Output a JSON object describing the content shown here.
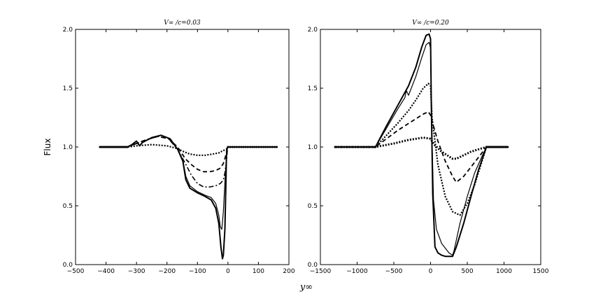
{
  "figure": {
    "ylabel": "Flux",
    "xlabel": "y∞"
  },
  "chart_data": [
    {
      "type": "line",
      "title": "V∞ /c=0.03",
      "xlabel": "y∞",
      "ylabel": "Flux",
      "xlim": [
        -500,
        200
      ],
      "ylim": [
        0.0,
        2.0
      ],
      "xticks": [
        -500,
        -400,
        -300,
        -200,
        -100,
        0,
        100,
        200
      ],
      "xtick_labels": [
        "−500",
        "−400",
        "−300",
        "−200",
        "−100",
        "0",
        "100",
        "200"
      ],
      "yticks": [
        0.0,
        0.5,
        1.0,
        1.5,
        2.0
      ],
      "ytick_labels": [
        "0.0",
        "0.5",
        "1.0",
        "1.5",
        "2.0"
      ],
      "grid": false,
      "series": [
        {
          "style": "solid-thick",
          "x": [
            -420,
            -330,
            -315,
            -300,
            -290,
            -280,
            -250,
            -220,
            -190,
            -165,
            -148,
            -138,
            -125,
            -100,
            -75,
            -55,
            -40,
            -30,
            -23,
            -18,
            -15,
            -10,
            -7,
            -5,
            -3,
            0,
            160
          ],
          "y": [
            1.0,
            1.0,
            1.02,
            1.05,
            1.01,
            1.04,
            1.08,
            1.1,
            1.07,
            0.98,
            0.88,
            0.72,
            0.65,
            0.61,
            0.58,
            0.55,
            0.48,
            0.35,
            0.15,
            0.05,
            0.08,
            0.3,
            0.65,
            0.92,
            0.99,
            1.0,
            1.0
          ]
        },
        {
          "style": "solid-thin",
          "x": [
            -420,
            -330,
            -315,
            -300,
            -290,
            -280,
            -250,
            -220,
            -190,
            -165,
            -148,
            -138,
            -125,
            -100,
            -75,
            -55,
            -40,
            -30,
            -25,
            -20,
            -15,
            -10,
            -5,
            -3,
            0,
            160
          ],
          "y": [
            1.0,
            1.0,
            1.02,
            1.05,
            1.01,
            1.04,
            1.08,
            1.1,
            1.07,
            0.98,
            0.89,
            0.75,
            0.67,
            0.62,
            0.59,
            0.57,
            0.52,
            0.42,
            0.32,
            0.3,
            0.45,
            0.7,
            0.92,
            0.98,
            1.0,
            1.0
          ]
        },
        {
          "style": "dashed",
          "x": [
            -420,
            -330,
            -300,
            -270,
            -230,
            -195,
            -165,
            -140,
            -120,
            -100,
            -80,
            -60,
            -40,
            -25,
            -15,
            -8,
            -3,
            0,
            160
          ],
          "y": [
            1.0,
            1.0,
            1.03,
            1.06,
            1.09,
            1.07,
            1.0,
            0.9,
            0.85,
            0.81,
            0.79,
            0.79,
            0.8,
            0.82,
            0.86,
            0.92,
            0.98,
            1.0,
            1.0
          ]
        },
        {
          "style": "dash-dot",
          "x": [
            -420,
            -330,
            -300,
            -270,
            -230,
            -195,
            -165,
            -140,
            -120,
            -100,
            -80,
            -60,
            -40,
            -25,
            -15,
            -10,
            -5,
            -2,
            0,
            160
          ],
          "y": [
            1.0,
            1.0,
            1.03,
            1.06,
            1.09,
            1.07,
            0.98,
            0.86,
            0.76,
            0.69,
            0.66,
            0.66,
            0.67,
            0.69,
            0.72,
            0.78,
            0.88,
            0.97,
            1.0,
            1.0
          ]
        },
        {
          "style": "dotted",
          "x": [
            -420,
            -330,
            -300,
            -250,
            -200,
            -170,
            -145,
            -125,
            -100,
            -75,
            -50,
            -30,
            -15,
            -5,
            0,
            160
          ],
          "y": [
            1.0,
            1.0,
            1.01,
            1.02,
            1.01,
            0.99,
            0.96,
            0.94,
            0.93,
            0.93,
            0.94,
            0.95,
            0.97,
            0.98,
            1.0,
            1.0
          ]
        }
      ]
    },
    {
      "type": "line",
      "title": "V∞ /c=0.20",
      "xlabel": "y∞",
      "ylabel": "Flux",
      "xlim": [
        -1500,
        1500
      ],
      "ylim": [
        0.0,
        2.0
      ],
      "xticks": [
        -1500,
        -1000,
        -500,
        0,
        500,
        1000,
        1500
      ],
      "xtick_labels": [
        "−1500",
        "−1000",
        "−500",
        "0",
        "500",
        "1000",
        "1500"
      ],
      "yticks": [
        0.0,
        0.5,
        1.0,
        1.5,
        2.0
      ],
      "ytick_labels": [
        "0.0",
        "0.5",
        "1.0",
        "1.5",
        "2.0"
      ],
      "grid": false,
      "series": [
        {
          "style": "solid-thick",
          "x": [
            -1300,
            -750,
            -600,
            -450,
            -300,
            -200,
            -120,
            -60,
            -20,
            0,
            10,
            30,
            60,
            100,
            150,
            200,
            300,
            350,
            450,
            550,
            650,
            760,
            1050
          ],
          "y": [
            1.0,
            1.0,
            1.18,
            1.35,
            1.52,
            1.68,
            1.85,
            1.95,
            1.96,
            1.92,
            1.4,
            0.6,
            0.15,
            0.1,
            0.08,
            0.07,
            0.07,
            0.15,
            0.35,
            0.58,
            0.8,
            1.0,
            1.0
          ]
        },
        {
          "style": "solid-thin",
          "x": [
            -1300,
            -750,
            -600,
            -450,
            -350,
            -330,
            -300,
            -200,
            -120,
            -60,
            -20,
            0,
            15,
            40,
            80,
            150,
            250,
            300,
            320,
            400,
            500,
            600,
            700,
            760,
            1050
          ],
          "y": [
            1.0,
            1.0,
            1.16,
            1.32,
            1.42,
            1.48,
            1.44,
            1.6,
            1.76,
            1.87,
            1.89,
            1.84,
            1.2,
            0.55,
            0.3,
            0.18,
            0.1,
            0.08,
            0.12,
            0.35,
            0.58,
            0.78,
            0.92,
            1.0,
            1.0
          ]
        },
        {
          "style": "dotted",
          "x": [
            -1300,
            -750,
            -600,
            -450,
            -300,
            -200,
            -100,
            -30,
            0,
            20,
            100,
            200,
            300,
            400,
            500,
            600,
            700,
            760,
            1050
          ],
          "y": [
            1.0,
            1.0,
            1.1,
            1.2,
            1.31,
            1.4,
            1.5,
            1.54,
            1.52,
            1.25,
            0.85,
            0.58,
            0.45,
            0.42,
            0.52,
            0.68,
            0.88,
            1.0,
            1.0
          ]
        },
        {
          "style": "dashed",
          "x": [
            -1300,
            -750,
            -600,
            -450,
            -300,
            -200,
            -100,
            -30,
            0,
            30,
            100,
            200,
            300,
            350,
            450,
            550,
            650,
            760,
            1050
          ],
          "y": [
            1.0,
            1.0,
            1.07,
            1.14,
            1.2,
            1.24,
            1.28,
            1.3,
            1.27,
            1.2,
            1.05,
            0.88,
            0.75,
            0.7,
            0.75,
            0.83,
            0.91,
            1.0,
            1.0
          ]
        },
        {
          "style": "dotted-thick",
          "x": [
            -1300,
            -750,
            -500,
            -300,
            -100,
            0,
            50,
            150,
            250,
            300,
            350,
            450,
            550,
            650,
            760,
            1050
          ],
          "y": [
            1.0,
            1.0,
            1.03,
            1.06,
            1.08,
            1.07,
            1.02,
            0.96,
            0.92,
            0.9,
            0.9,
            0.93,
            0.96,
            0.98,
            1.0,
            1.0
          ]
        }
      ]
    }
  ]
}
